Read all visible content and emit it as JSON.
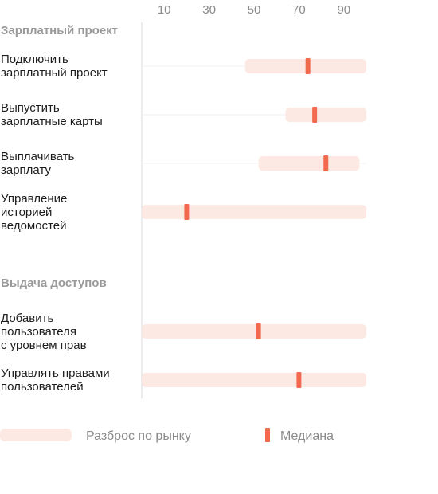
{
  "chart_data": {
    "type": "range",
    "title": "",
    "xlabel": "",
    "ylabel": "",
    "x_ticks": [
      10,
      30,
      50,
      70,
      90
    ],
    "xlim": [
      0,
      100
    ],
    "groups": [
      {
        "title": "Зарплатный проект",
        "rows": [
          {
            "label": [
              "Подключить",
              "зарплатный проект"
            ],
            "min": 46,
            "max": 100,
            "median": 74
          },
          {
            "label": [
              "Выпустить",
              "зарплатные карты"
            ],
            "min": 64,
            "max": 100,
            "median": 77
          },
          {
            "label": [
              "Выплачивать",
              "зарплату"
            ],
            "min": 52,
            "max": 97,
            "median": 82
          },
          {
            "label": [
              "Управление",
              "историей",
              "ведомостей"
            ],
            "min": 0,
            "max": 100,
            "median": 20
          }
        ]
      },
      {
        "title": "Выдача доступов",
        "rows": [
          {
            "label": [
              "Добавить",
              "пользователя",
              "с уровнем прав"
            ],
            "min": 0,
            "max": 100,
            "median": 52
          },
          {
            "label": [
              "Управлять правами",
              "пользователей"
            ],
            "min": 0,
            "max": 100,
            "median": 70
          }
        ]
      }
    ],
    "legend": {
      "range_label": "Разброс по рынку",
      "median_label": "Медиана"
    },
    "colors": {
      "range": "#fde9e4",
      "median": "#f3694d",
      "axis": "#d9d9d9",
      "grid": "#f2f2f2"
    }
  }
}
